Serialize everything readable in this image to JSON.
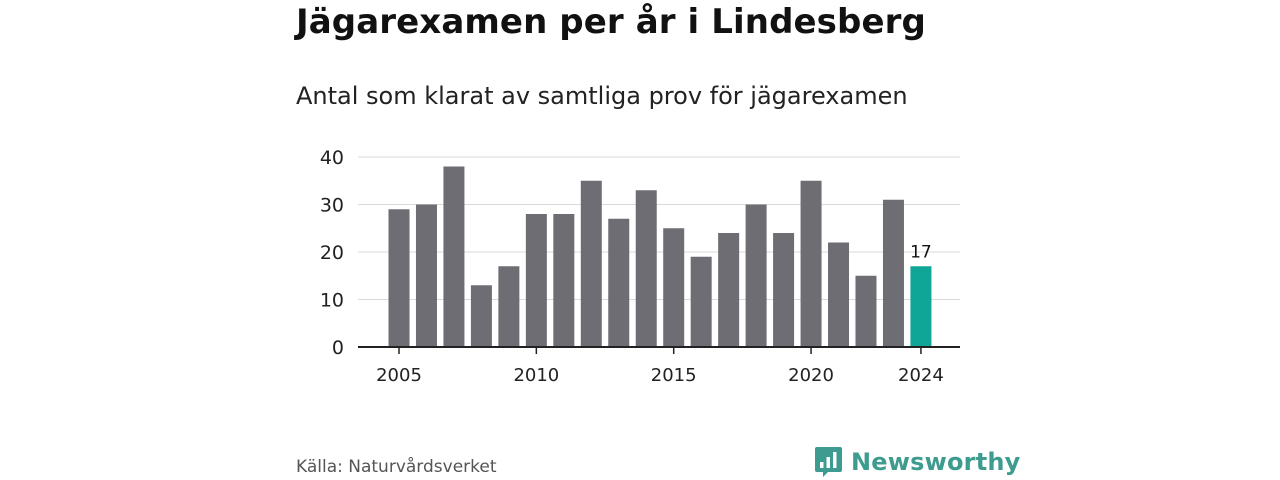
{
  "header": {
    "title": "Jägarexamen per år i Lindesberg",
    "subtitle": "Antal som klarat av samtliga prov för jägarexamen"
  },
  "footer": {
    "source": "Källa: Naturvårdsverket",
    "brand": "Newsworthy"
  },
  "colors": {
    "bar": "#6e6d74",
    "highlight": "#10a697",
    "grid": "#d9d9d9",
    "axis": "#222222",
    "brand": "#3d9b8f"
  },
  "chart_data": {
    "type": "bar",
    "title": "Jägarexamen per år i Lindesberg",
    "subtitle": "Antal som klarat av samtliga prov för jägarexamen",
    "xlabel": "",
    "ylabel": "",
    "categories": [
      2005,
      2006,
      2007,
      2008,
      2009,
      2010,
      2011,
      2012,
      2013,
      2014,
      2015,
      2016,
      2017,
      2018,
      2019,
      2020,
      2021,
      2022,
      2023,
      2024
    ],
    "values": [
      29,
      30,
      38,
      13,
      17,
      28,
      28,
      35,
      27,
      33,
      25,
      19,
      24,
      30,
      24,
      35,
      22,
      15,
      31,
      17
    ],
    "ylim": [
      0,
      40
    ],
    "yticks": [
      0,
      10,
      20,
      30,
      40
    ],
    "xticks": [
      2005,
      2010,
      2015,
      2020,
      2024
    ],
    "highlight": {
      "category": 2024,
      "label": "17"
    },
    "grid": true,
    "legend": "none"
  }
}
